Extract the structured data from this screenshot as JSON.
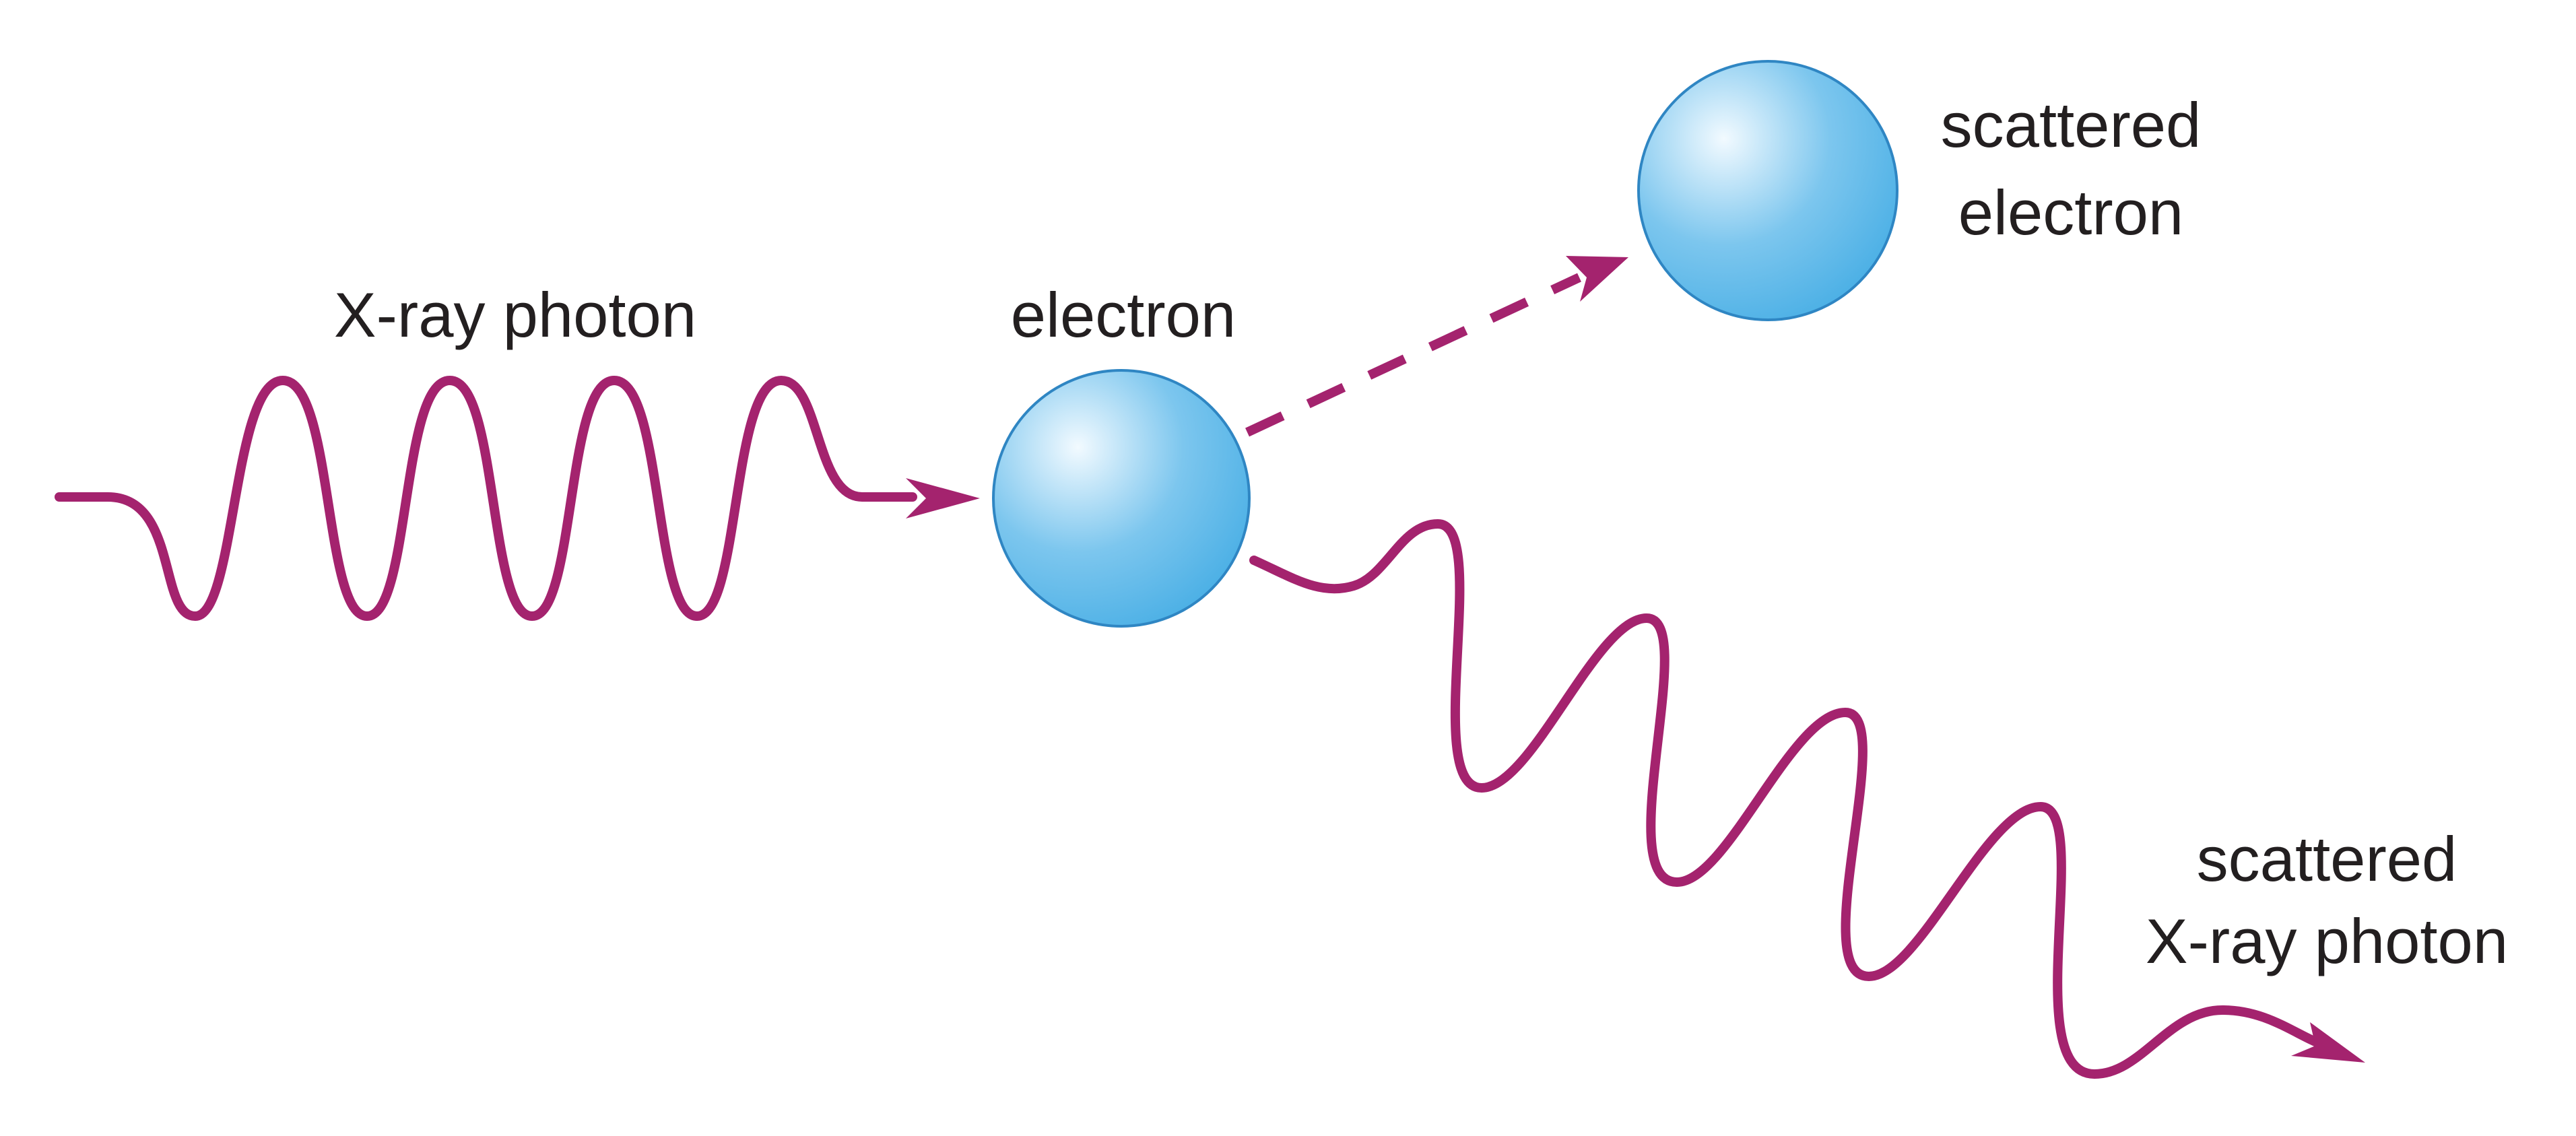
{
  "colors": {
    "photon": "#a4236e",
    "electron_fill": "#4eb1e6",
    "electron_highlight": "#f2faff",
    "electron_edge": "#2f86c3",
    "text": "#231f20"
  },
  "labels": {
    "incident_photon": "X-ray photon",
    "electron": "electron",
    "scattered_electron_line1": "scattered",
    "scattered_electron_line2": "electron",
    "scattered_photon_line1": "scattered",
    "scattered_photon_line2": "X-ray photon"
  },
  "icons": {
    "electron": "sphere",
    "arrow": "arrowhead"
  }
}
